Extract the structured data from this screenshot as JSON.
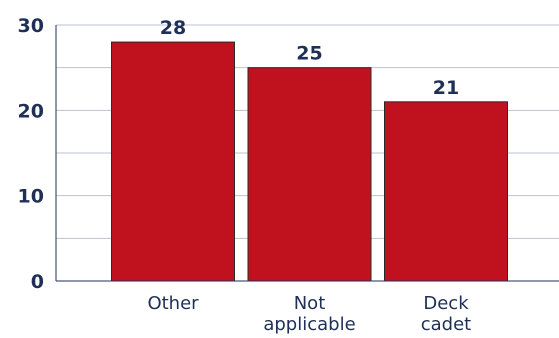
{
  "chart_data": {
    "type": "bar",
    "categories": [
      [
        "Other"
      ],
      [
        "Not",
        "applicable"
      ],
      [
        "Deck",
        "cadet"
      ]
    ],
    "values": [
      28,
      25,
      21
    ],
    "data_labels": [
      "28",
      "25",
      "21"
    ],
    "yticks": [
      "0",
      "10",
      "20",
      "30"
    ],
    "ylim": [
      0,
      30
    ],
    "title": "",
    "xlabel": "",
    "ylabel": "",
    "grid": true,
    "colors": {
      "bar": "#c0111f",
      "bar_edge": "#2a2a2a",
      "grid": "#b9c3d3",
      "axis": "#1f2f56",
      "text": "#1f2f56"
    }
  }
}
